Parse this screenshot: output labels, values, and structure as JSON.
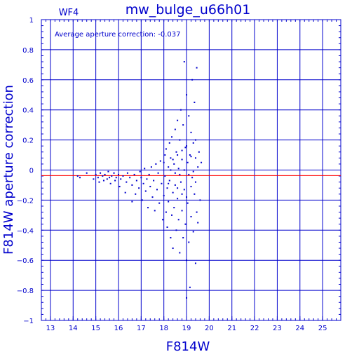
{
  "chart_data": {
    "type": "scatter",
    "title": "mw_bulge_u66h01",
    "panel_label": "WF4",
    "annotation": "Average aperture correction: -0.037",
    "xlabel": "F814W",
    "ylabel": "F814W aperture correction",
    "xlim": [
      12.6,
      25.8
    ],
    "ylim": [
      -1,
      1
    ],
    "xticks": [
      13,
      14,
      15,
      16,
      17,
      18,
      19,
      20,
      21,
      22,
      23,
      24,
      25
    ],
    "xtick_labels": [
      "13",
      "14",
      "15",
      "16",
      "17",
      "18",
      "19",
      "20",
      "21",
      "22",
      "23",
      "24",
      "25"
    ],
    "yticks": [
      -1,
      -0.8,
      -0.6,
      -0.4,
      -0.2,
      0,
      0.2,
      0.4,
      0.6,
      0.8,
      1
    ],
    "ytick_labels": [
      "−1",
      "−0.8",
      "−0.6",
      "−0.4",
      "−0.2",
      "0",
      "0.2",
      "0.4",
      "0.6",
      "0.8",
      "1"
    ],
    "grid": true,
    "reference_line": {
      "y": -0.037,
      "color": "#ff0000"
    },
    "point_color": "#0000cc",
    "series": [
      {
        "points": [
          [
            14.2,
            -0.04
          ],
          [
            14.3,
            -0.05
          ],
          [
            14.6,
            -0.02
          ],
          [
            14.9,
            -0.06
          ],
          [
            15.0,
            -0.03
          ],
          [
            15.1,
            -0.05
          ],
          [
            15.15,
            -0.08
          ],
          [
            15.2,
            -0.02
          ],
          [
            15.3,
            -0.04
          ],
          [
            15.35,
            -0.07
          ],
          [
            15.4,
            -0.03
          ],
          [
            15.5,
            -0.06
          ],
          [
            15.55,
            -0.01
          ],
          [
            15.6,
            -0.05
          ],
          [
            15.65,
            -0.09
          ],
          [
            15.7,
            -0.04
          ],
          [
            15.8,
            -0.02
          ],
          [
            15.85,
            -0.07
          ],
          [
            15.9,
            -0.05
          ],
          [
            16.0,
            -0.03
          ],
          [
            16.05,
            -0.11
          ],
          [
            16.1,
            -0.06
          ],
          [
            16.2,
            -0.04
          ],
          [
            16.3,
            -0.15
          ],
          [
            16.35,
            -0.08
          ],
          [
            16.4,
            -0.02
          ],
          [
            16.5,
            -0.05
          ],
          [
            16.6,
            -0.1
          ],
          [
            16.6,
            -0.21
          ],
          [
            16.7,
            -0.03
          ],
          [
            16.75,
            -0.16
          ],
          [
            16.8,
            -0.07
          ],
          [
            16.9,
            -0.12
          ],
          [
            16.95,
            -0.01
          ],
          [
            17.0,
            -0.05
          ],
          [
            17.05,
            -0.2
          ],
          [
            17.1,
            -0.09
          ],
          [
            17.15,
            0.01
          ],
          [
            17.2,
            -0.14
          ],
          [
            17.25,
            -0.06
          ],
          [
            17.3,
            -0.25
          ],
          [
            17.35,
            -0.03
          ],
          [
            17.4,
            -0.11
          ],
          [
            17.45,
            0.02
          ],
          [
            17.5,
            -0.18
          ],
          [
            17.55,
            -0.07
          ],
          [
            17.6,
            -0.27
          ],
          [
            17.65,
            0.04
          ],
          [
            17.7,
            -0.13
          ],
          [
            17.75,
            -0.02
          ],
          [
            17.8,
            -0.22
          ],
          [
            17.85,
            0.06
          ],
          [
            17.9,
            -0.09
          ],
          [
            17.95,
            -0.33
          ],
          [
            18.0,
            0.05
          ],
          [
            18.0,
            -0.17
          ],
          [
            18.05,
            0.1
          ],
          [
            18.05,
            -0.04
          ],
          [
            18.1,
            -0.28
          ],
          [
            18.1,
            0.14
          ],
          [
            18.15,
            -0.12
          ],
          [
            18.15,
            -0.38
          ],
          [
            18.2,
            0.02
          ],
          [
            18.2,
            -0.21
          ],
          [
            18.25,
            0.18
          ],
          [
            18.25,
            -0.07
          ],
          [
            18.3,
            -0.45
          ],
          [
            18.3,
            0.08
          ],
          [
            18.35,
            -0.3
          ],
          [
            18.35,
            0.22
          ],
          [
            18.4,
            -0.15
          ],
          [
            18.4,
            -0.52
          ],
          [
            18.45,
            0.04
          ],
          [
            18.45,
            -0.25
          ],
          [
            18.5,
            0.27
          ],
          [
            18.5,
            -0.1
          ],
          [
            18.55,
            -0.4
          ],
          [
            18.55,
            0.12
          ],
          [
            18.6,
            -0.19
          ],
          [
            18.6,
            0.33
          ],
          [
            18.65,
            -0.33
          ],
          [
            18.65,
            0.01
          ],
          [
            18.7,
            -0.55
          ],
          [
            18.7,
            0.2
          ],
          [
            18.75,
            -0.08
          ],
          [
            18.75,
            0.4
          ],
          [
            18.8,
            -0.27
          ],
          [
            18.8,
            0.07
          ],
          [
            18.85,
            -0.45
          ],
          [
            18.85,
            0.3
          ],
          [
            18.9,
            -0.13
          ],
          [
            18.9,
            0.72
          ],
          [
            18.95,
            -0.36
          ],
          [
            18.95,
            0.15
          ],
          [
            19.0,
            -0.6
          ],
          [
            19.0,
            0.5
          ],
          [
            19.0,
            -0.85
          ],
          [
            19.05,
            0.05
          ],
          [
            19.05,
            -0.22
          ],
          [
            19.1,
            0.36
          ],
          [
            19.1,
            -0.48
          ],
          [
            19.15,
            0.1
          ],
          [
            19.15,
            -0.78
          ],
          [
            19.2,
            0.25
          ],
          [
            19.2,
            -0.31
          ],
          [
            19.25,
            0.6
          ],
          [
            19.25,
            -0.05
          ],
          [
            19.3,
            0.18
          ],
          [
            19.3,
            -0.41
          ],
          [
            19.35,
            0.45
          ],
          [
            19.35,
            -0.16
          ],
          [
            19.4,
            0.08
          ],
          [
            19.4,
            -0.62
          ],
          [
            19.45,
            0.68
          ],
          [
            19.45,
            -0.28
          ],
          [
            19.5,
            0.02
          ],
          [
            19.5,
            -0.35
          ],
          [
            19.55,
            0.12
          ],
          [
            19.6,
            -0.2
          ],
          [
            19.65,
            0.05
          ],
          [
            18.3,
            0.0
          ],
          [
            18.5,
            -0.02
          ],
          [
            18.7,
            -0.03
          ],
          [
            18.9,
            0.0
          ],
          [
            19.1,
            -0.03
          ],
          [
            19.3,
            -0.01
          ],
          [
            18.2,
            -0.09
          ],
          [
            18.6,
            -0.12
          ],
          [
            18.8,
            -0.16
          ],
          [
            19.0,
            -0.18
          ],
          [
            19.2,
            -0.11
          ],
          [
            19.4,
            -0.08
          ],
          [
            18.4,
            0.07
          ],
          [
            18.6,
            0.1
          ],
          [
            18.8,
            0.13
          ],
          [
            19.0,
            0.16
          ],
          [
            19.2,
            0.09
          ],
          [
            19.4,
            0.2
          ]
        ]
      }
    ]
  }
}
